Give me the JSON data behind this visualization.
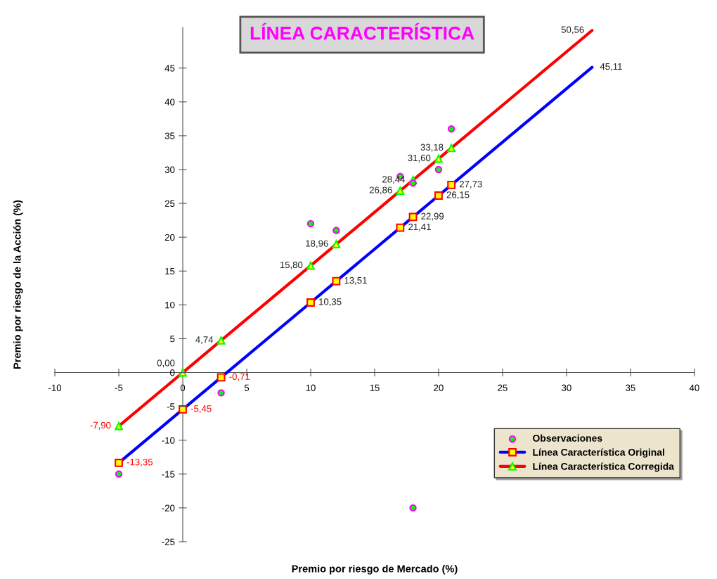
{
  "chart_data": {
    "type": "scatter",
    "title": "LÍNEA CARACTERÍSTICA",
    "xlabel": "Premio por riesgo de Mercado (%)",
    "ylabel": "Premio por riesgo de la Acción (%)",
    "xlim": [
      -10,
      40
    ],
    "xticks": [
      -10,
      -5,
      0,
      5,
      10,
      15,
      20,
      25,
      30,
      35,
      40
    ],
    "ylim": [
      -25,
      51
    ],
    "yticks": [
      -25,
      -20,
      -15,
      -10,
      -5,
      0,
      5,
      10,
      15,
      20,
      25,
      30,
      35,
      40,
      45
    ],
    "grid": false,
    "legend": "bottom right",
    "series": [
      {
        "name": "Observaciones",
        "marker": "circle",
        "color": "#00ff00",
        "x": [
          -5,
          3,
          10,
          12,
          17,
          18,
          18,
          20,
          21
        ],
        "values": [
          -15,
          -3,
          22,
          21,
          29,
          28,
          -20,
          30,
          36
        ]
      },
      {
        "name": "Línea Característica Original",
        "type": "line",
        "marker": "square",
        "color": "#0000ff",
        "x": [
          -5,
          0,
          3,
          10,
          12,
          17,
          18,
          20,
          21,
          32
        ],
        "values": [
          -13.35,
          -5.45,
          -0.71,
          10.35,
          13.51,
          21.41,
          22.99,
          26.15,
          27.73,
          45.11
        ],
        "value_labels": [
          "-13,35",
          "-5,45",
          "-0,71",
          "10,35",
          "13,51",
          "21,41",
          "22,99",
          "26,15",
          "27,73",
          "45,11"
        ]
      },
      {
        "name": "Línea Característica Corregida",
        "type": "line",
        "marker": "triangle",
        "color": "#ff0000",
        "x": [
          -5,
          0,
          3,
          10,
          12,
          17,
          18,
          20,
          21,
          32
        ],
        "values": [
          -7.9,
          0,
          4.74,
          15.8,
          18.96,
          26.86,
          28.44,
          31.6,
          33.18,
          50.56
        ],
        "value_labels": [
          "-7,90",
          "0,00",
          "4,74",
          "15,80",
          "18,96",
          "26,86",
          "28,44",
          "31,60",
          "33,18",
          "50,56"
        ]
      }
    ]
  }
}
